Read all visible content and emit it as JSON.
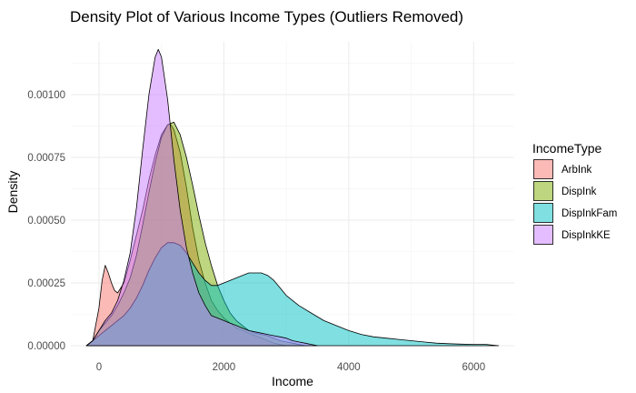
{
  "chart_data": {
    "type": "area",
    "title": "Density Plot of Various Income Types (Outliers Removed)",
    "xlabel": "Income",
    "ylabel": "Density",
    "xlim": [
      -450,
      6650
    ],
    "ylim": [
      0,
      0.00121
    ],
    "x_ticks": [
      0,
      2000,
      4000,
      6000
    ],
    "x_tick_labels": [
      "0",
      "2000",
      "4000",
      "6000"
    ],
    "y_ticks": [
      0,
      0.00025,
      0.0005,
      0.00075,
      0.001
    ],
    "y_tick_labels": [
      "0.00000",
      "0.00025",
      "0.00050",
      "0.00075",
      "0.00100"
    ],
    "grid": true,
    "legend": {
      "title": "IncomeType",
      "position": "right"
    },
    "series": [
      {
        "name": "ArbInk",
        "color": "#F8766D",
        "x": [
          -200,
          -100,
          0,
          50,
          100,
          150,
          200,
          250,
          300,
          400,
          500,
          600,
          700,
          800,
          900,
          1000,
          1100,
          1150,
          1200,
          1300,
          1400,
          1500,
          1600,
          1700,
          1800,
          1900,
          2000,
          2100,
          2200,
          2300,
          2400,
          2500,
          2600,
          2700,
          2800,
          2900,
          3000
        ],
        "y": [
          0,
          2e-05,
          0.00015,
          0.00026,
          0.00032,
          0.00029,
          0.00025,
          0.00022,
          0.00021,
          0.00025,
          0.00034,
          0.00044,
          0.00054,
          0.00066,
          0.00076,
          0.00084,
          0.00088,
          0.00088,
          0.00086,
          0.00077,
          0.00063,
          0.00047,
          0.00034,
          0.00025,
          0.00018,
          0.00014,
          0.00011,
          9e-05,
          7e-05,
          6e-05,
          5e-05,
          4e-05,
          3e-05,
          2e-05,
          1e-05,
          5e-06,
          0
        ]
      },
      {
        "name": "DispInk",
        "color": "#7CAE00",
        "x": [
          -200,
          -100,
          0,
          100,
          200,
          300,
          400,
          500,
          600,
          700,
          800,
          900,
          1000,
          1100,
          1200,
          1300,
          1400,
          1500,
          1600,
          1700,
          1800,
          1900,
          2000,
          2100,
          2200,
          2300,
          2400,
          2500,
          2600,
          2700,
          2800,
          2900,
          3000,
          3100,
          3200,
          3300
        ],
        "y": [
          0,
          2e-05,
          6e-05,
          9e-05,
          0.00012,
          0.00016,
          0.00021,
          0.00027,
          0.00036,
          0.00048,
          0.00061,
          0.00073,
          0.00083,
          0.00088,
          0.00089,
          0.00084,
          0.00075,
          0.00064,
          0.00052,
          0.00041,
          0.00032,
          0.00024,
          0.00018,
          0.00013,
          0.0001,
          8e-05,
          6e-05,
          5e-05,
          4.5e-05,
          4e-05,
          3e-05,
          2e-05,
          1.5e-05,
          1e-05,
          5e-06,
          0
        ]
      },
      {
        "name": "DispInkFam",
        "color": "#00BFC4",
        "x": [
          -200,
          -100,
          0,
          100,
          200,
          300,
          400,
          500,
          600,
          700,
          800,
          900,
          1000,
          1100,
          1200,
          1300,
          1400,
          1500,
          1600,
          1700,
          1800,
          1900,
          2000,
          2100,
          2200,
          2300,
          2400,
          2500,
          2600,
          2700,
          2800,
          2900,
          3000,
          3200,
          3400,
          3600,
          3800,
          4000,
          4200,
          4400,
          4600,
          4800,
          5000,
          5200,
          5400,
          5600,
          5800,
          6000,
          6200,
          6400
        ],
        "y": [
          0,
          2e-05,
          4e-05,
          6e-05,
          8e-05,
          0.0001,
          0.00012,
          0.00015,
          0.00019,
          0.00024,
          0.0003,
          0.00035,
          0.00039,
          0.00041,
          0.00041,
          0.0004,
          0.00037,
          0.00033,
          0.00029,
          0.00026,
          0.00024,
          0.00024,
          0.00025,
          0.00026,
          0.00027,
          0.00028,
          0.00029,
          0.00029,
          0.00029,
          0.00028,
          0.00026,
          0.00023,
          0.0002,
          0.00016,
          0.00013,
          0.0001,
          8e-05,
          6e-05,
          4.5e-05,
          3.5e-05,
          3e-05,
          2.5e-05,
          2e-05,
          1.5e-05,
          1e-05,
          8e-06,
          6e-06,
          5e-06,
          5e-06,
          0
        ]
      },
      {
        "name": "DispInkKE",
        "color": "#C77CFF",
        "x": [
          -200,
          -100,
          0,
          100,
          200,
          300,
          400,
          500,
          600,
          700,
          800,
          900,
          950,
          1000,
          1100,
          1200,
          1300,
          1400,
          1500,
          1600,
          1700,
          1800,
          1900,
          2000,
          2100,
          2200,
          2300,
          2400,
          2500,
          2600,
          2700,
          2800,
          2900,
          3000,
          3100,
          3200,
          3300,
          3400,
          3500
        ],
        "y": [
          0,
          2e-05,
          6e-05,
          0.0001,
          0.00013,
          0.00018,
          0.00026,
          0.00037,
          0.00055,
          0.00078,
          0.001,
          0.00115,
          0.00118,
          0.00115,
          0.00098,
          0.00074,
          0.00054,
          0.00039,
          0.00029,
          0.00021,
          0.00016,
          0.00012,
          0.00011,
          0.0001,
          9e-05,
          8e-05,
          7e-05,
          6e-05,
          5.5e-05,
          5e-05,
          4.5e-05,
          4e-05,
          3.5e-05,
          3e-05,
          2e-05,
          1.5e-05,
          1e-05,
          5e-06,
          0
        ]
      }
    ]
  }
}
